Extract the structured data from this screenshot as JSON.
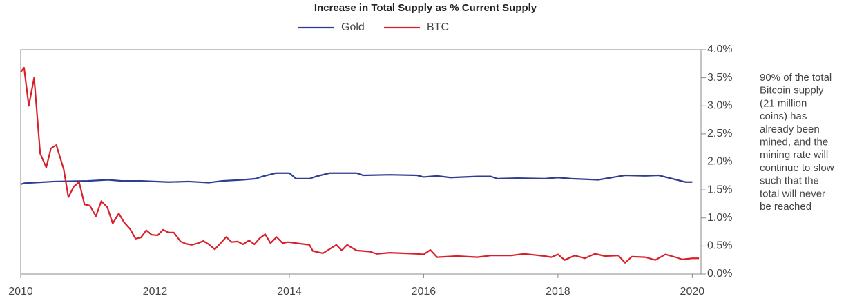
{
  "chart_data": {
    "type": "line",
    "title": "Increase in Total Supply as % Current Supply",
    "xlim": [
      2010,
      2020.13
    ],
    "xticks": [
      2010,
      2012,
      2014,
      2016,
      2018,
      2020
    ],
    "ylim": [
      0,
      4
    ],
    "yticks": [
      {
        "value": 0,
        "label": "0.0%"
      },
      {
        "value": 0.5,
        "label": "0.5%"
      },
      {
        "value": 1,
        "label": "1.0%"
      },
      {
        "value": 1.5,
        "label": "1.5%"
      },
      {
        "value": 2,
        "label": "2.0%"
      },
      {
        "value": 2.5,
        "label": "2.5%"
      },
      {
        "value": 3,
        "label": "3.0%"
      },
      {
        "value": 3.5,
        "label": "3.5%"
      },
      {
        "value": 4,
        "label": "4.0%"
      }
    ],
    "annotation": [
      "90% of the total",
      "Bitcoin supply",
      "(21 million",
      "coins) has",
      "already been",
      "mined, and the",
      "mining rate will",
      "continue to slow",
      "such that the",
      "total will never",
      "be reached"
    ],
    "series": [
      {
        "name": "Gold",
        "color": "#2e3d8f",
        "x": [
          2010,
          2010.05,
          2010.5,
          2011.0,
          2011.3,
          2011.5,
          2011.8,
          2012.2,
          2012.5,
          2012.8,
          2013.0,
          2013.3,
          2013.5,
          2013.6,
          2013.8,
          2014.0,
          2014.1,
          2014.3,
          2014.4,
          2014.6,
          2015.0,
          2015.1,
          2015.5,
          2015.9,
          2016.0,
          2016.2,
          2016.4,
          2016.8,
          2017.0,
          2017.1,
          2017.4,
          2017.8,
          2018.0,
          2018.2,
          2018.6,
          2018.8,
          2019.0,
          2019.3,
          2019.5,
          2019.7,
          2019.9,
          2020.0
        ],
        "values": [
          1.6,
          1.62,
          1.65,
          1.66,
          1.68,
          1.66,
          1.66,
          1.64,
          1.65,
          1.63,
          1.66,
          1.68,
          1.7,
          1.74,
          1.8,
          1.8,
          1.7,
          1.7,
          1.74,
          1.8,
          1.8,
          1.76,
          1.77,
          1.76,
          1.73,
          1.75,
          1.72,
          1.74,
          1.74,
          1.7,
          1.71,
          1.7,
          1.72,
          1.7,
          1.68,
          1.72,
          1.76,
          1.75,
          1.76,
          1.7,
          1.64,
          1.64
        ]
      },
      {
        "name": "BTC",
        "color": "#d9202a",
        "x": [
          2010,
          2010.05,
          2010.12,
          2010.2,
          2010.29,
          2010.38,
          2010.45,
          2010.53,
          2010.64,
          2010.71,
          2010.79,
          2010.87,
          2010.95,
          2011.03,
          2011.12,
          2011.2,
          2011.29,
          2011.37,
          2011.46,
          2011.54,
          2011.63,
          2011.71,
          2011.79,
          2011.87,
          2011.95,
          2012.04,
          2012.12,
          2012.2,
          2012.28,
          2012.38,
          2012.46,
          2012.55,
          2012.64,
          2012.72,
          2012.8,
          2012.89,
          2012.96,
          2013.06,
          2013.14,
          2013.23,
          2013.31,
          2013.4,
          2013.48,
          2013.56,
          2013.64,
          2013.72,
          2013.81,
          2013.9,
          2013.98,
          2014.3,
          2014.35,
          2014.5,
          2014.7,
          2014.78,
          2014.86,
          2015.0,
          2015.2,
          2015.3,
          2015.5,
          2015.9,
          2016.0,
          2016.1,
          2016.2,
          2016.5,
          2016.8,
          2017.0,
          2017.3,
          2017.5,
          2017.8,
          2017.9,
          2018.0,
          2018.1,
          2018.25,
          2018.4,
          2018.55,
          2018.7,
          2018.9,
          2019.0,
          2019.1,
          2019.3,
          2019.45,
          2019.6,
          2019.75,
          2019.85,
          2020.0,
          2020.1
        ],
        "values": [
          3.6,
          3.68,
          3.0,
          3.5,
          2.15,
          1.9,
          2.24,
          2.3,
          1.87,
          1.37,
          1.56,
          1.64,
          1.24,
          1.22,
          1.03,
          1.3,
          1.19,
          0.9,
          1.08,
          0.92,
          0.8,
          0.63,
          0.65,
          0.78,
          0.7,
          0.69,
          0.79,
          0.74,
          0.74,
          0.58,
          0.54,
          0.52,
          0.55,
          0.59,
          0.53,
          0.44,
          0.53,
          0.66,
          0.57,
          0.58,
          0.53,
          0.6,
          0.53,
          0.64,
          0.71,
          0.55,
          0.66,
          0.55,
          0.57,
          0.52,
          0.41,
          0.37,
          0.52,
          0.42,
          0.52,
          0.42,
          0.4,
          0.36,
          0.38,
          0.36,
          0.35,
          0.43,
          0.3,
          0.32,
          0.3,
          0.33,
          0.33,
          0.36,
          0.32,
          0.3,
          0.35,
          0.25,
          0.33,
          0.28,
          0.36,
          0.32,
          0.33,
          0.2,
          0.31,
          0.3,
          0.25,
          0.35,
          0.3,
          0.26,
          0.28,
          0.28
        ]
      }
    ]
  }
}
